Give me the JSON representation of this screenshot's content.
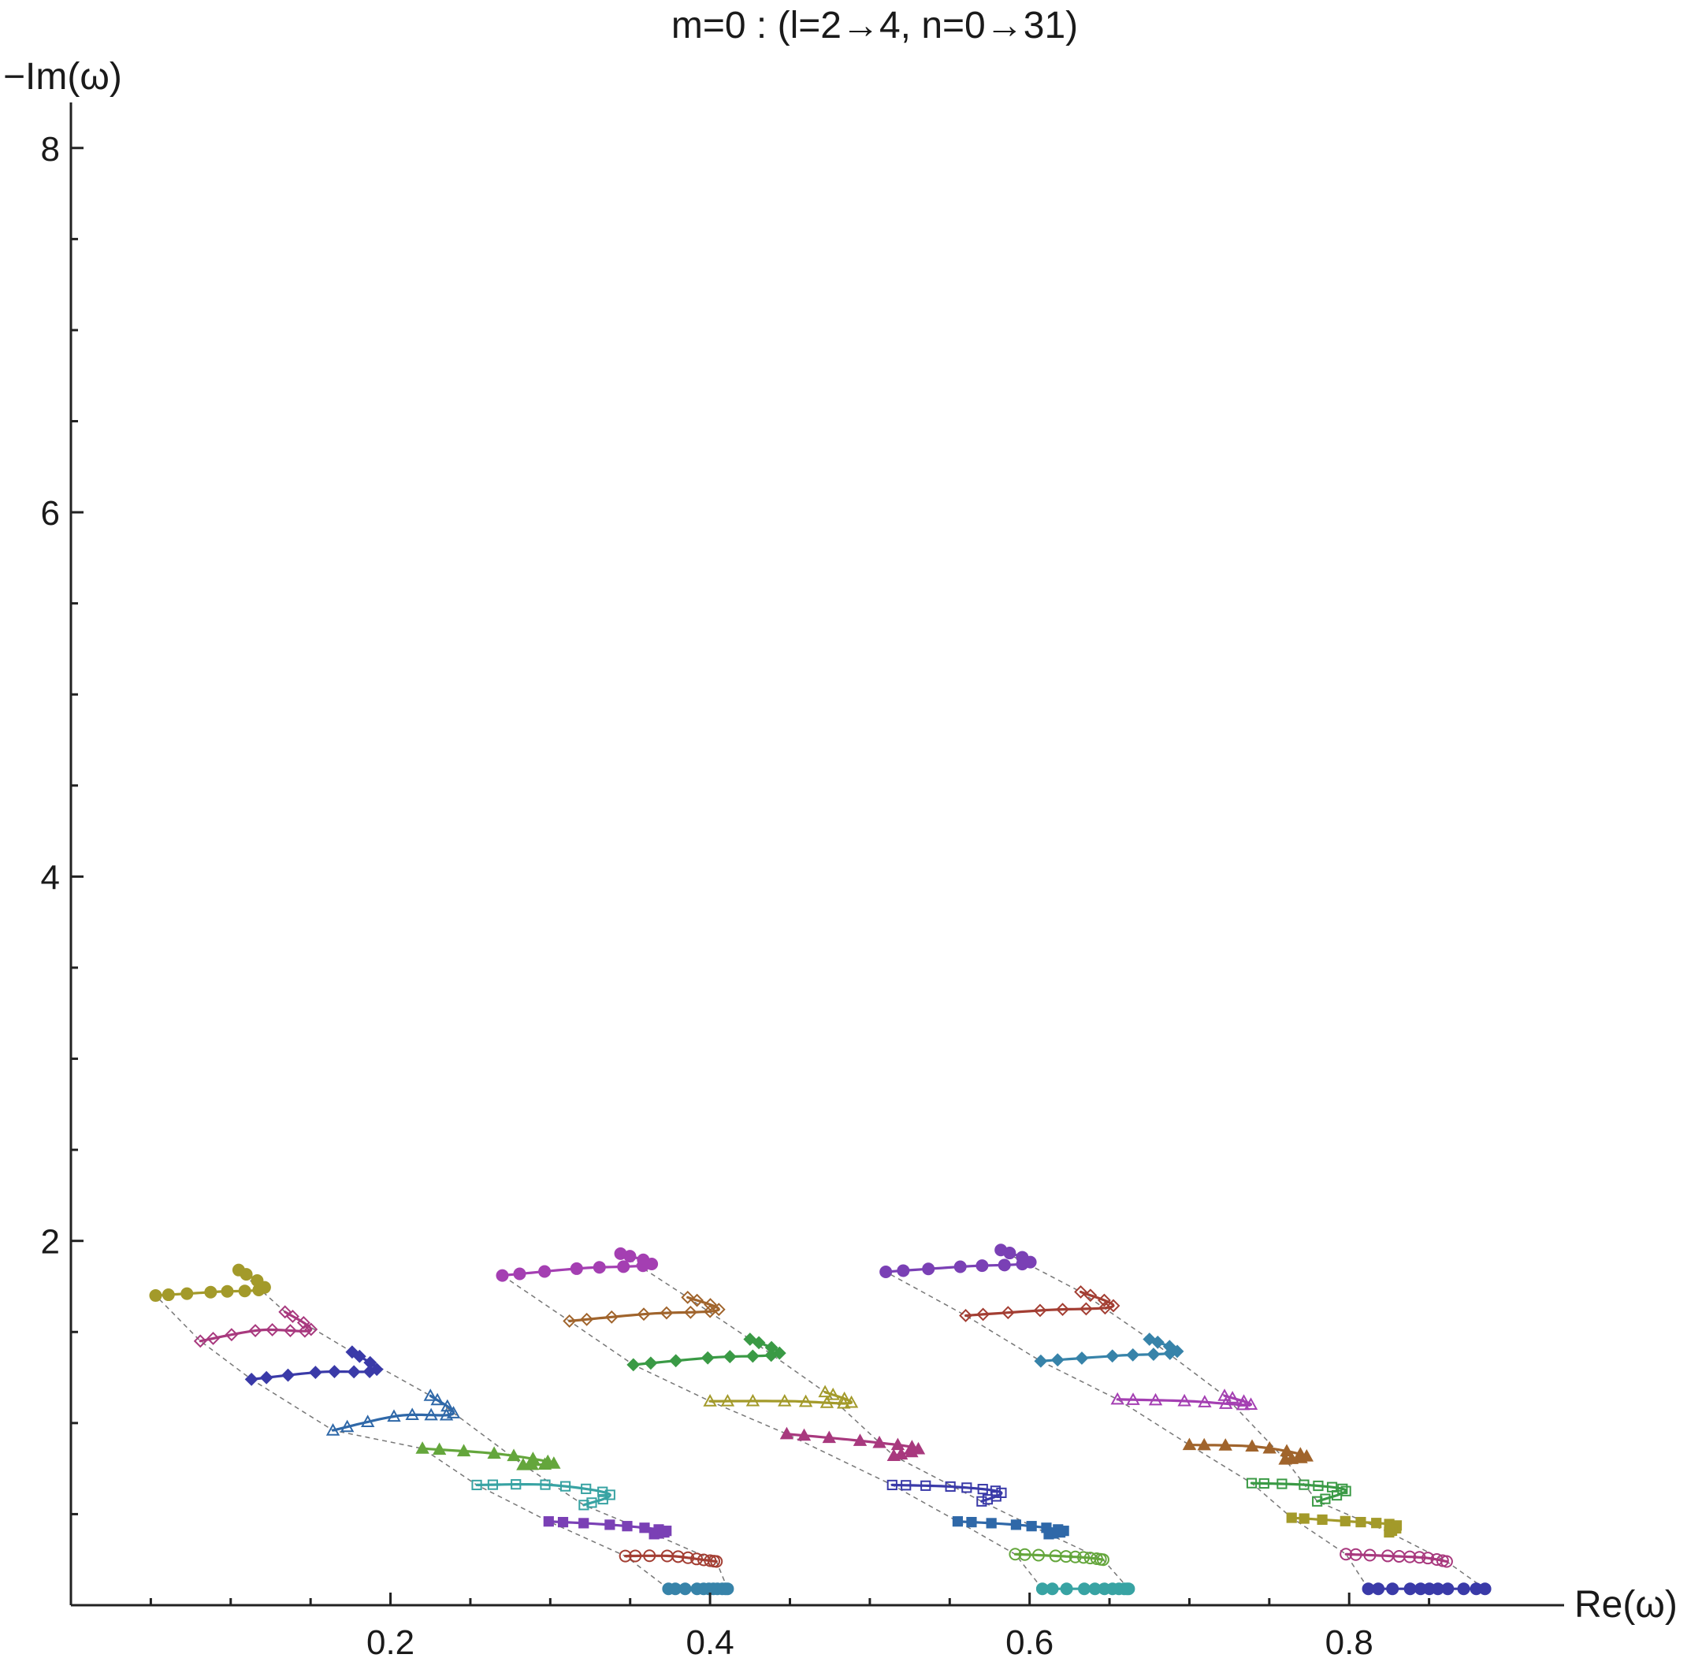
{
  "chart_data": {
    "type": "scatter",
    "title": "m=0 : (l=2→4, n=0→31)",
    "xlabel": "Re(ω)",
    "ylabel": "−Im(ω)",
    "xlim": [
      0,
      0.9
    ],
    "ylim": [
      0,
      8.25
    ],
    "x_ticks": [
      {
        "value": 0.2,
        "label": "0.2"
      },
      {
        "value": 0.4,
        "label": "0.4"
      },
      {
        "value": 0.6,
        "label": "0.6"
      },
      {
        "value": 0.8,
        "label": "0.8"
      }
    ],
    "y_ticks": [
      {
        "value": 2,
        "label": "2"
      },
      {
        "value": 4,
        "label": "4"
      },
      {
        "value": 6,
        "label": "6"
      },
      {
        "value": 8,
        "label": "8"
      }
    ],
    "grid": false,
    "legend": "none",
    "markers_per_series": 11,
    "palette": [
      "#3a3aa8",
      "#a8397e",
      "#a39a2a",
      "#3a9a45",
      "#a0642c",
      "#a43fb2",
      "#3783a9",
      "#a33e33",
      "#7a40b5",
      "#38a3a3",
      "#64a63c",
      "#2f68a8"
    ],
    "series": [
      {
        "l": 2,
        "n": 0,
        "x": [
          0.374,
          0.393,
          0.404,
          0.411
        ],
        "y": [
          0.09,
          0.09,
          0.09,
          0.09
        ]
      },
      {
        "l": 2,
        "n": 1,
        "x": [
          0.347,
          0.375,
          0.395,
          0.404
        ],
        "y": [
          0.27,
          0.27,
          0.25,
          0.24
        ]
      },
      {
        "l": 2,
        "n": 2,
        "x": [
          0.299,
          0.34,
          0.372,
          0.365
        ],
        "y": [
          0.46,
          0.44,
          0.41,
          0.39
        ]
      },
      {
        "l": 2,
        "n": 3,
        "x": [
          0.254,
          0.3,
          0.337,
          0.321
        ],
        "y": [
          0.66,
          0.66,
          0.61,
          0.55
        ]
      },
      {
        "l": 2,
        "n": 4,
        "x": [
          0.22,
          0.268,
          0.302,
          0.283
        ],
        "y": [
          0.86,
          0.83,
          0.78,
          0.77
        ]
      },
      {
        "l": 2,
        "n": 5,
        "x": [
          0.164,
          0.205,
          0.239,
          0.225
        ],
        "y": [
          0.96,
          1.04,
          1.05,
          1.15
        ]
      },
      {
        "l": 2,
        "n": 6,
        "x": [
          0.113,
          0.156,
          0.191,
          0.176
        ],
        "y": [
          1.24,
          1.28,
          1.29,
          1.39
        ]
      },
      {
        "l": 2,
        "n": 7,
        "x": [
          0.081,
          0.118,
          0.15,
          0.134
        ],
        "y": [
          1.45,
          1.51,
          1.51,
          1.61
        ]
      },
      {
        "l": 2,
        "n": 8,
        "x": [
          0.053,
          0.09,
          0.121,
          0.105
        ],
        "y": [
          1.7,
          1.72,
          1.74,
          1.84
        ]
      },
      {
        "l": 3,
        "n": 0,
        "x": [
          0.608,
          0.636,
          0.655,
          0.662
        ],
        "y": [
          0.09,
          0.09,
          0.09,
          0.09
        ]
      },
      {
        "l": 3,
        "n": 1,
        "x": [
          0.591,
          0.618,
          0.637,
          0.646
        ],
        "y": [
          0.28,
          0.27,
          0.26,
          0.25
        ]
      },
      {
        "l": 3,
        "n": 2,
        "x": [
          0.555,
          0.594,
          0.621,
          0.612
        ],
        "y": [
          0.46,
          0.44,
          0.41,
          0.39
        ]
      },
      {
        "l": 3,
        "n": 3,
        "x": [
          0.514,
          0.553,
          0.582,
          0.57
        ],
        "y": [
          0.66,
          0.65,
          0.62,
          0.57
        ]
      },
      {
        "l": 3,
        "n": 4,
        "x": [
          0.448,
          0.497,
          0.53,
          0.515
        ],
        "y": [
          0.94,
          0.9,
          0.86,
          0.82
        ]
      },
      {
        "l": 3,
        "n": 5,
        "x": [
          0.4,
          0.45,
          0.488,
          0.472
        ],
        "y": [
          1.12,
          1.12,
          1.11,
          1.17
        ]
      },
      {
        "l": 3,
        "n": 6,
        "x": [
          0.352,
          0.402,
          0.443,
          0.425
        ],
        "y": [
          1.32,
          1.36,
          1.38,
          1.46
        ]
      },
      {
        "l": 3,
        "n": 7,
        "x": [
          0.312,
          0.362,
          0.405,
          0.386
        ],
        "y": [
          1.56,
          1.6,
          1.62,
          1.69
        ]
      },
      {
        "l": 3,
        "n": 8,
        "x": [
          0.27,
          0.32,
          0.363,
          0.344
        ],
        "y": [
          1.81,
          1.85,
          1.87,
          1.93
        ]
      },
      {
        "l": 4,
        "n": 0,
        "x": [
          0.812,
          0.84,
          0.86,
          0.885
        ],
        "y": [
          0.09,
          0.09,
          0.09,
          0.09
        ]
      },
      {
        "l": 4,
        "n": 1,
        "x": [
          0.798,
          0.826,
          0.848,
          0.861
        ],
        "y": [
          0.28,
          0.27,
          0.26,
          0.24
        ]
      },
      {
        "l": 4,
        "n": 2,
        "x": [
          0.764,
          0.8,
          0.829,
          0.825
        ],
        "y": [
          0.48,
          0.46,
          0.44,
          0.4
        ]
      },
      {
        "l": 4,
        "n": 3,
        "x": [
          0.739,
          0.774,
          0.798,
          0.78
        ],
        "y": [
          0.67,
          0.66,
          0.63,
          0.57
        ]
      },
      {
        "l": 4,
        "n": 4,
        "x": [
          0.7,
          0.742,
          0.773,
          0.76
        ],
        "y": [
          0.88,
          0.87,
          0.82,
          0.8
        ]
      },
      {
        "l": 4,
        "n": 5,
        "x": [
          0.655,
          0.7,
          0.738,
          0.722
        ],
        "y": [
          1.13,
          1.12,
          1.1,
          1.15
        ]
      },
      {
        "l": 4,
        "n": 6,
        "x": [
          0.607,
          0.655,
          0.692,
          0.675
        ],
        "y": [
          1.34,
          1.37,
          1.39,
          1.46
        ]
      },
      {
        "l": 4,
        "n": 7,
        "x": [
          0.56,
          0.61,
          0.652,
          0.632
        ],
        "y": [
          1.59,
          1.62,
          1.64,
          1.72
        ]
      },
      {
        "l": 4,
        "n": 8,
        "x": [
          0.51,
          0.56,
          0.6,
          0.582
        ],
        "y": [
          1.83,
          1.86,
          1.88,
          1.95
        ]
      }
    ]
  }
}
